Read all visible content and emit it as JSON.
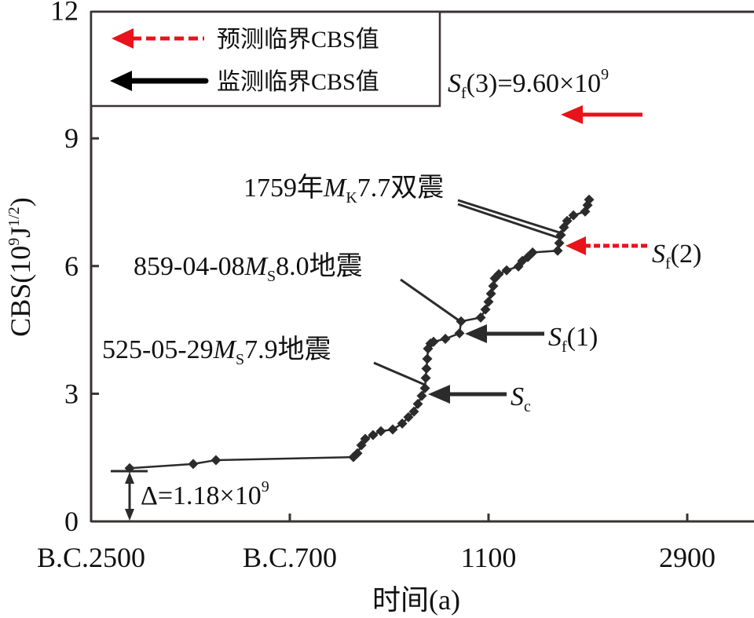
{
  "chart_data": {
    "type": "line",
    "title": "",
    "xlabel": "时间(a)",
    "ylabel": "CBS(10",
    "ylabel_sup": "9",
    "ylabel_unit": "J",
    "ylabel_unit_sup": "1/2",
    "ylabel_close": ")",
    "xlim": [
      -2500,
      3400
    ],
    "ylim": [
      0,
      12
    ],
    "x_ticks": [
      {
        "value": -2500,
        "label": "B.C.2500"
      },
      {
        "value": -700,
        "label": "B.C.700"
      },
      {
        "value": 1100,
        "label": "1100"
      },
      {
        "value": 2900,
        "label": "2900"
      }
    ],
    "y_ticks": [
      {
        "value": 0,
        "label": "0"
      },
      {
        "value": 3,
        "label": "3"
      },
      {
        "value": 6,
        "label": "6"
      },
      {
        "value": 9,
        "label": "9"
      },
      {
        "value": 12,
        "label": "12"
      }
    ],
    "series": [
      {
        "name": "CBS",
        "color": "#2b2b2b",
        "x": [
          -2151,
          -1575,
          -1369,
          -124,
          -88,
          -52,
          -17,
          54,
          125,
          232,
          318,
          374,
          424,
          460,
          495,
          524,
          531,
          538,
          545,
          552,
          574,
          602,
          709,
          837,
          851,
          1029,
          1072,
          1100,
          1122,
          1143,
          1157,
          1193,
          1264,
          1371,
          1406,
          1456,
          1499,
          1726,
          1741,
          1755,
          1783,
          1812,
          1869,
          1975,
          1997,
          2011
        ],
        "y": [
          1.25,
          1.35,
          1.44,
          1.51,
          1.6,
          1.79,
          1.94,
          2.03,
          2.12,
          2.16,
          2.3,
          2.45,
          2.58,
          2.76,
          2.95,
          3.13,
          3.37,
          3.59,
          3.82,
          4.06,
          4.18,
          4.22,
          4.29,
          4.42,
          4.7,
          4.79,
          4.98,
          5.16,
          5.35,
          5.53,
          5.71,
          5.81,
          5.9,
          5.99,
          6.12,
          6.21,
          6.32,
          6.36,
          6.54,
          6.73,
          6.91,
          7.06,
          7.19,
          7.28,
          7.43,
          7.56
        ]
      }
    ],
    "legend": {
      "placement": "top-left",
      "items": [
        {
          "label": "预测临界CBS值",
          "color": "#e8131b",
          "style": "dashed-arrow"
        },
        {
          "label": "监测临界CBS值",
          "color": "#000000",
          "style": "solid-arrow"
        }
      ]
    },
    "annotations": {
      "eq1759": {
        "pre": "1759年",
        "M": "M",
        "sub": "K",
        "post": "7.7双震"
      },
      "eq859": {
        "pre": "859-04-08",
        "M": "M",
        "sub": "S",
        "post": "8.0地震"
      },
      "eq525": {
        "pre": "525-05-29",
        "M": "M",
        "sub": "S",
        "post": "7.9地震"
      },
      "sc": {
        "S": "S",
        "sub": "c",
        "value": 3.0
      },
      "sf1": {
        "S": "S",
        "sub": "f",
        "post": "(1)",
        "value": 4.42
      },
      "sf2": {
        "S": "S",
        "sub": "f",
        "post": "(2)",
        "value": 6.5
      },
      "sf3": {
        "S": "S",
        "sub": "f",
        "post": "(3)=9.60×10",
        "sup": "9",
        "value": 9.6
      },
      "delta": {
        "text": "Δ=1.18×10",
        "sup": "9",
        "value": 1.18
      }
    },
    "colors": {
      "predicted": "#e8131b",
      "monitored": "#000000",
      "axis": "#3a3232"
    }
  }
}
